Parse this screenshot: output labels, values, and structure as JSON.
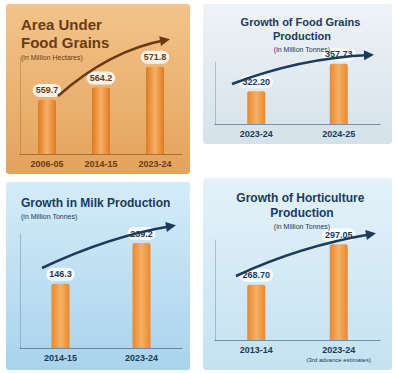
{
  "chart_data": [
    {
      "type": "bar",
      "title": "Area Under Food Grains",
      "subtitle": "(in Million Hectares)",
      "categories": [
        "2006-05",
        "2014-15",
        "2023-24"
      ],
      "values": [
        559.7,
        564.2,
        571.8
      ],
      "color": "#e07a22",
      "ylim": [
        540,
        575
      ],
      "grid": false,
      "data_labels": true,
      "tick_labels": "x"
    },
    {
      "type": "bar",
      "title": "Growth of Food Grains Production",
      "subtitle": "(in Million Tonnes)",
      "categories": [
        "2023-24",
        "2024-25"
      ],
      "values": [
        322.2,
        357.73
      ],
      "value_labels": [
        "322.20",
        "357.73"
      ],
      "color": "#e8892e",
      "ylim": [
        280,
        360
      ],
      "grid": false,
      "data_labels": true,
      "tick_labels": "x"
    },
    {
      "type": "bar",
      "title": "Growth in Milk Production",
      "subtitle": "(in Million Tonnes)",
      "categories": [
        "2014-15",
        "2023-24"
      ],
      "values": [
        146.3,
        239.2
      ],
      "color": "#e8892e",
      "ylim": [
        0,
        260
      ],
      "grid": false,
      "data_labels": true,
      "tick_labels": "x"
    },
    {
      "type": "bar",
      "title": "Growth of Horticulture Production",
      "subtitle": "(in Million Tonnes)",
      "categories": [
        "2013-14",
        "2023-24"
      ],
      "values": [
        268.7,
        297.05
      ],
      "value_labels": [
        "268.70",
        "297.05"
      ],
      "annotations": [
        {
          "text": "(3rd advance estimates)",
          "category": "2023-24"
        }
      ],
      "color": "#e8892e",
      "ylim": [
        230,
        300
      ],
      "grid": false,
      "data_labels": true,
      "tick_labels": "x"
    }
  ]
}
